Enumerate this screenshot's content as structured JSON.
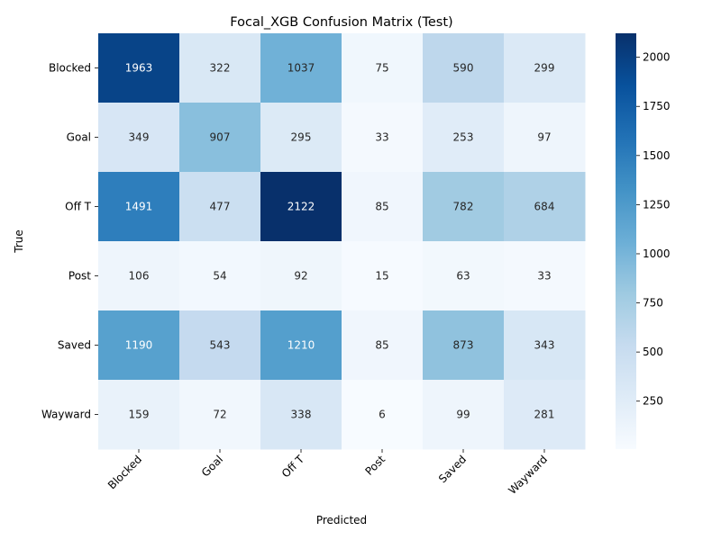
{
  "chart_data": {
    "type": "heatmap",
    "title": "Focal_XGB Confusion Matrix (Test)",
    "xlabel": "Predicted",
    "ylabel": "True",
    "x_categories": [
      "Blocked",
      "Goal",
      "Off T",
      "Post",
      "Saved",
      "Wayward"
    ],
    "y_categories": [
      "Blocked",
      "Goal",
      "Off T",
      "Post",
      "Saved",
      "Wayward"
    ],
    "values": [
      [
        1963,
        322,
        1037,
        75,
        590,
        299
      ],
      [
        349,
        907,
        295,
        33,
        253,
        97
      ],
      [
        1491,
        477,
        2122,
        85,
        782,
        684
      ],
      [
        106,
        54,
        92,
        15,
        63,
        33
      ],
      [
        1190,
        543,
        1210,
        85,
        873,
        343
      ],
      [
        159,
        72,
        338,
        6,
        99,
        281
      ]
    ],
    "colormap": "Blues",
    "vmin": 6,
    "vmax": 2122,
    "colorbar_ticks": [
      250,
      500,
      750,
      1000,
      1250,
      1500,
      1750,
      2000
    ],
    "colorbar_tick_labels": [
      "250",
      "500",
      "750",
      "1000",
      "1250",
      "1500",
      "1750",
      "2000"
    ]
  }
}
